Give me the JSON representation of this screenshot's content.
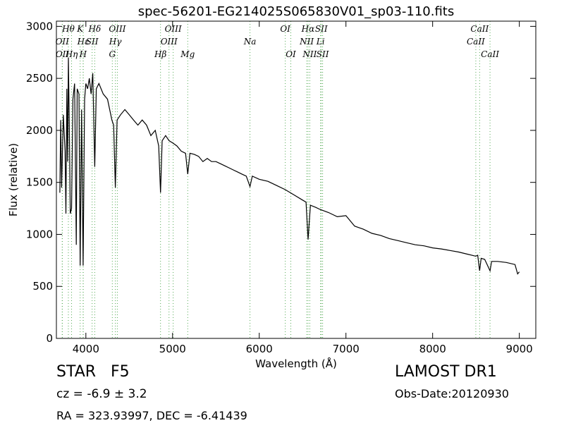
{
  "chart_data": {
    "type": "line",
    "title": "spec-56201-EG214025S065830V01_sp03-110.fits",
    "x_label": "Wavelength (Å)",
    "y_label": "Flux (relative)",
    "xlim": [
      3660,
      9190
    ],
    "ylim": [
      0,
      3050
    ],
    "xticks": [
      4000,
      5000,
      6000,
      7000,
      8000,
      9000
    ],
    "yticks": [
      0,
      500,
      1000,
      1500,
      2000,
      2500,
      3000
    ],
    "series": [
      {
        "color": "#000000",
        "x": [
          3700,
          3710,
          3720,
          3740,
          3760,
          3770,
          3780,
          3790,
          3798,
          3810,
          3820,
          3835,
          3850,
          3870,
          3889,
          3900,
          3920,
          3934,
          3950,
          3968,
          3985,
          4000,
          4020,
          4040,
          4060,
          4080,
          4102,
          4120,
          4150,
          4200,
          4250,
          4300,
          4320,
          4340,
          4360,
          4400,
          4450,
          4500,
          4550,
          4600,
          4650,
          4700,
          4750,
          4800,
          4840,
          4861,
          4880,
          4920,
          4960,
          5000,
          5050,
          5100,
          5150,
          5175,
          5200,
          5250,
          5300,
          5350,
          5400,
          5450,
          5500,
          5550,
          5600,
          5650,
          5700,
          5750,
          5800,
          5850,
          5893,
          5920,
          6000,
          6100,
          6200,
          6300,
          6400,
          6500,
          6540,
          6563,
          6590,
          6650,
          6700,
          6800,
          6900,
          7000,
          7100,
          7200,
          7300,
          7400,
          7500,
          7600,
          7700,
          7800,
          7900,
          8000,
          8100,
          8200,
          8300,
          8400,
          8498,
          8520,
          8542,
          8560,
          8600,
          8662,
          8680,
          8750,
          8850,
          8950,
          8980,
          9000
        ],
        "values": [
          1400,
          2100,
          1450,
          2150,
          1800,
          1200,
          2400,
          1700,
          2700,
          2000,
          1200,
          1250,
          2300,
          2450,
          900,
          2400,
          2350,
          700,
          2200,
          700,
          2300,
          2450,
          2400,
          2500,
          2350,
          2550,
          1650,
          2400,
          2450,
          2350,
          2300,
          2100,
          2050,
          1450,
          2100,
          2150,
          2200,
          2150,
          2100,
          2050,
          2100,
          2050,
          1950,
          2000,
          1850,
          1400,
          1900,
          1950,
          1900,
          1880,
          1850,
          1800,
          1780,
          1580,
          1780,
          1770,
          1750,
          1700,
          1730,
          1700,
          1700,
          1680,
          1660,
          1640,
          1620,
          1600,
          1580,
          1560,
          1460,
          1560,
          1530,
          1510,
          1470,
          1430,
          1380,
          1330,
          1310,
          950,
          1280,
          1260,
          1240,
          1210,
          1170,
          1180,
          1080,
          1050,
          1010,
          990,
          960,
          940,
          920,
          900,
          890,
          870,
          860,
          845,
          830,
          810,
          790,
          800,
          650,
          770,
          760,
          650,
          740,
          740,
          730,
          710,
          620,
          640
        ]
      }
    ],
    "line_color": "#55aa55",
    "lines": [
      {
        "x": 3798,
        "label": "Hθ"
      },
      {
        "x": 3727,
        "label": "OII"
      },
      {
        "x": 3729,
        "label": "OII"
      },
      {
        "x": 3835,
        "label": "Hη"
      },
      {
        "x": 3934,
        "label": "K"
      },
      {
        "x": 3970,
        "label": "Hε"
      },
      {
        "x": 3968,
        "label": "H"
      },
      {
        "x": 4072,
        "label": "SII"
      },
      {
        "x": 4102,
        "label": "Hδ"
      },
      {
        "x": 4363,
        "label": "OIII"
      },
      {
        "x": 4340,
        "label": "Hγ"
      },
      {
        "x": 4305,
        "label": "G"
      },
      {
        "x": 5007,
        "label": "OIII"
      },
      {
        "x": 4959,
        "label": "OIII"
      },
      {
        "x": 4861,
        "label": "Hβ"
      },
      {
        "x": 5175,
        "label": "Mg"
      },
      {
        "x": 5893,
        "label": "Na"
      },
      {
        "x": 6300,
        "label": "OI"
      },
      {
        "x": 6364,
        "label": "OI"
      },
      {
        "x": 6563,
        "label": "Hα"
      },
      {
        "x": 6548,
        "label": "NII"
      },
      {
        "x": 6583,
        "label": "NII"
      },
      {
        "x": 6716,
        "label": "SII"
      },
      {
        "x": 6707,
        "label": "Li"
      },
      {
        "x": 6731,
        "label": "SII"
      },
      {
        "x": 8542,
        "label": "CaII"
      },
      {
        "x": 8498,
        "label": "CaII"
      },
      {
        "x": 8662,
        "label": "CaII"
      }
    ]
  },
  "info": {
    "class": "STAR   F5",
    "redshift": "cz = -6.9 ± 3.2",
    "coords": "RA = 323.93997, DEC = -6.41439",
    "survey": "LAMOST DR1",
    "obs_date": "Obs-Date:20120930"
  }
}
